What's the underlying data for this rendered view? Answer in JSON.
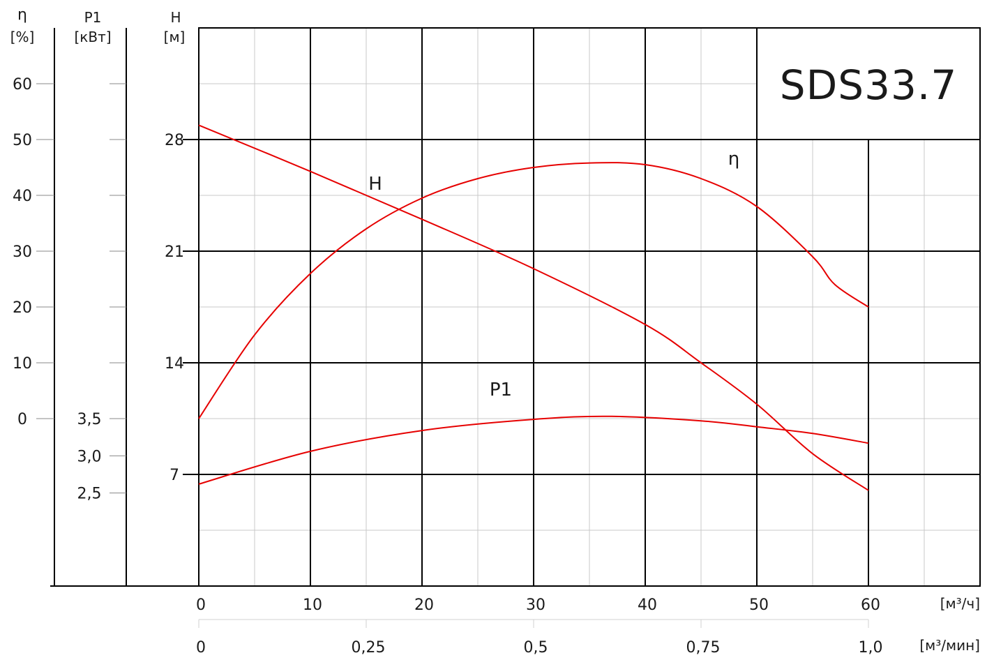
{
  "chart_data": {
    "type": "line",
    "title": "SDS33.7",
    "x_axis": {
      "unit": "[м³/ч]",
      "ticks": [
        "0",
        "10",
        "20",
        "30",
        "40",
        "50",
        "60"
      ],
      "range": [
        0,
        70
      ]
    },
    "x2_axis": {
      "unit": "[м³/мин]",
      "ticks": [
        "0",
        "0,25",
        "0,5",
        "0,75",
        "1,0"
      ]
    },
    "axes": {
      "eta": {
        "symbol": "η",
        "unit": "[%]",
        "ticks": [
          "60",
          "50",
          "40",
          "30",
          "20",
          "10",
          "0"
        ],
        "range": [
          0,
          60
        ]
      },
      "p1": {
        "symbol": "P1",
        "unit": "[кВт]",
        "ticks": [
          "3,5",
          "3,0",
          "2,5"
        ],
        "range": [
          2.0,
          3.5
        ]
      },
      "h": {
        "symbol": "H",
        "unit": "[м]",
        "ticks": [
          "28",
          "21",
          "14",
          "7"
        ],
        "range": [
          0,
          35
        ]
      }
    },
    "series": [
      {
        "name": "H",
        "label": "H",
        "axis": "h",
        "x": [
          0,
          10,
          20,
          30,
          40,
          45,
          50,
          55,
          60
        ],
        "y": [
          28.9,
          26.0,
          23.0,
          19.9,
          16.4,
          14.0,
          11.4,
          8.3,
          6.0
        ]
      },
      {
        "name": "η",
        "label": "η",
        "axis": "eta",
        "x": [
          0,
          5,
          10,
          15,
          20,
          25,
          30,
          35,
          40,
          45,
          50,
          55,
          57,
          60
        ],
        "y": [
          0,
          15,
          26,
          34,
          39.5,
          43,
          45,
          45.8,
          45.5,
          43,
          38,
          29,
          24,
          20
        ]
      },
      {
        "name": "P1",
        "label": "P1",
        "axis": "p1",
        "x": [
          0,
          10,
          20,
          30,
          37,
          45,
          50,
          55,
          60
        ],
        "y": [
          2.62,
          3.06,
          3.34,
          3.49,
          3.53,
          3.47,
          3.39,
          3.3,
          3.17
        ]
      }
    ],
    "grid": true,
    "colors": {
      "curve": "#e60000",
      "grid_major": "#000000",
      "grid_minor": "#c8c8c8"
    }
  }
}
